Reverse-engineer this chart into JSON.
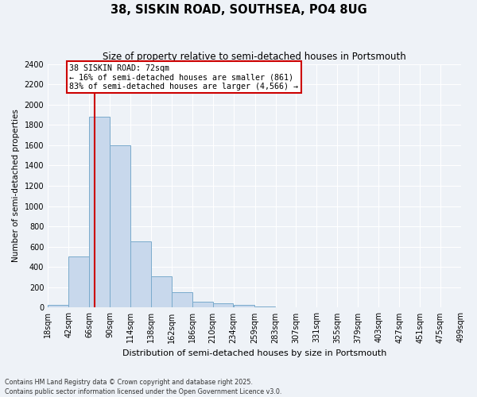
{
  "title": "38, SISKIN ROAD, SOUTHSEA, PO4 8UG",
  "subtitle": "Size of property relative to semi-detached houses in Portsmouth",
  "xlabel": "Distribution of semi-detached houses by size in Portsmouth",
  "ylabel": "Number of semi-detached properties",
  "property_label": "38 SISKIN ROAD: 72sqm",
  "annotation_line2": "← 16% of semi-detached houses are smaller (861)",
  "annotation_line3": "83% of semi-detached houses are larger (4,566) →",
  "bin_edges": [
    18,
    42,
    66,
    90,
    114,
    138,
    162,
    186,
    210,
    234,
    259,
    283,
    307,
    331,
    355,
    379,
    403,
    427,
    451,
    475,
    499
  ],
  "bar_heights": [
    30,
    500,
    1880,
    1600,
    650,
    310,
    155,
    60,
    45,
    30,
    15,
    5,
    3,
    2,
    1,
    0,
    0,
    0,
    0,
    0
  ],
  "bar_color": "#c8d8ec",
  "bar_edge_color": "#7aabcc",
  "vline_color": "#cc0000",
  "vline_x": 72,
  "box_facecolor": "white",
  "box_edgecolor": "#cc0000",
  "ylim": [
    0,
    2400
  ],
  "yticks": [
    0,
    200,
    400,
    600,
    800,
    1000,
    1200,
    1400,
    1600,
    1800,
    2000,
    2200,
    2400
  ],
  "footer": "Contains HM Land Registry data © Crown copyright and database right 2025.\nContains public sector information licensed under the Open Government Licence v3.0.",
  "background_color": "#eef2f7"
}
